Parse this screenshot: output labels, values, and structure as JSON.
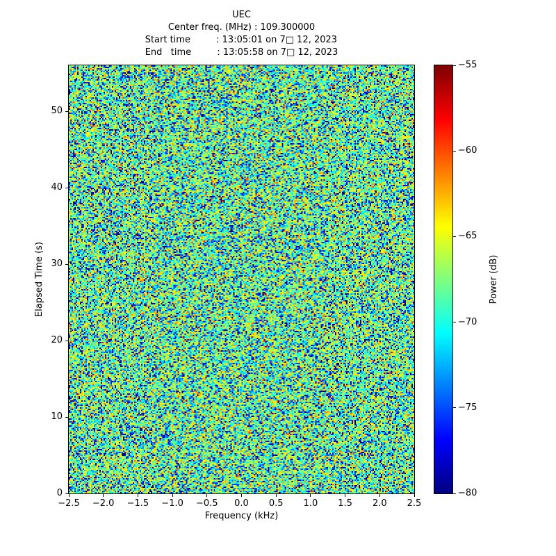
{
  "chart_data": {
    "type": "heatmap",
    "title": "UEC",
    "header_lines": [
      "Center freq. (MHz) : 109.300000",
      "Start time         : 13:05:01 on 7□ 12, 2023",
      "End   time         : 13:05:58 on 7□ 12, 2023"
    ],
    "center_freq_mhz": "109.300000",
    "start_time": "13:05:01 on 7□ 12, 2023",
    "end_time": "13:05:58 on 7□ 12, 2023",
    "xlabel": "Frequency (kHz)",
    "ylabel": "Elapsed Time (s)",
    "xlim": [
      -2.5,
      2.5
    ],
    "ylim": [
      0,
      56
    ],
    "xtick_values": [
      -2.5,
      -2.0,
      -1.5,
      -1.0,
      -0.5,
      0.0,
      0.5,
      1.0,
      1.5,
      2.0,
      2.5
    ],
    "xtick_labels": [
      "−2.5",
      "−2.0",
      "−1.5",
      "−1.0",
      "−0.5",
      "0.0",
      "0.5",
      "1.0",
      "1.5",
      "2.0",
      "2.5"
    ],
    "ytick_values": [
      0,
      10,
      20,
      30,
      40,
      50
    ],
    "ytick_labels": [
      "0",
      "10",
      "20",
      "30",
      "40",
      "50"
    ],
    "colorbar": {
      "label": "Power (dB)",
      "vmin": -80,
      "vmax": -55,
      "tick_values": [
        -55,
        -60,
        -65,
        -70,
        -75,
        -80
      ],
      "tick_labels": [
        "−55",
        "−60",
        "−65",
        "−70",
        "−75",
        "−80"
      ]
    },
    "colormap": "jet",
    "values_description": "uniform RF noise floor: typical cell power −72 to −63 dB (green/yellow), sparse deep fades down to −80 dB (dark blue specks), rare peaks near −58 dB (orange/red specks)",
    "noise_model": {
      "distribution": "exponential",
      "base_db": -67,
      "seed": 42,
      "cols": 248,
      "rows": 308
    }
  }
}
